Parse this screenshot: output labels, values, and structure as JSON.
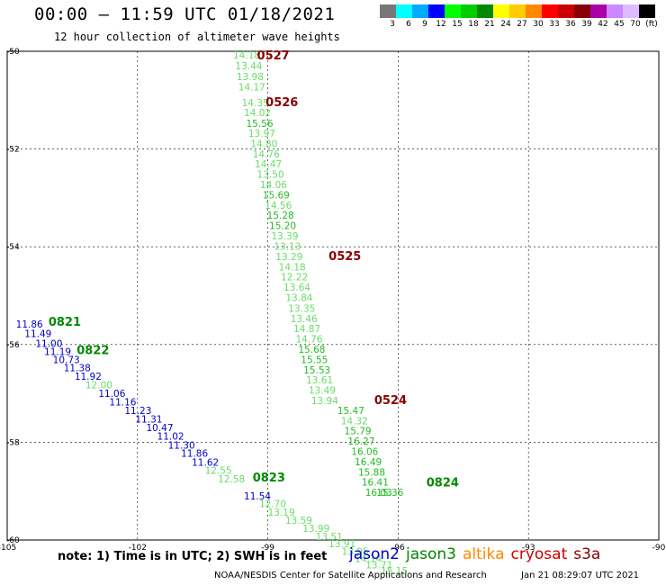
{
  "title": "00:00 – 11:59 UTC 01/18/2021",
  "subtitle": "12 hour collection of altimeter wave heights",
  "color_scale": {
    "colors": [
      "#777777",
      "#00ffff",
      "#00aaff",
      "#0000ff",
      "#00ff00",
      "#00cc00",
      "#008800",
      "#ffff00",
      "#ffcc00",
      "#ff8800",
      "#ff0000",
      "#cc0000",
      "#880000",
      "#aa00aa",
      "#cc88ff",
      "#ddbbff",
      "#000000"
    ],
    "labels": [
      "3",
      "6",
      "9",
      "12",
      "15",
      "18",
      "21",
      "24",
      "27",
      "30",
      "33",
      "36",
      "39",
      "42",
      "45",
      "70",
      "(ft)"
    ]
  },
  "axes": {
    "lon_ticks": [
      "-105",
      "-102",
      "-99",
      "-96",
      "-93",
      "-90"
    ],
    "lat_ticks": [
      "-50",
      "-52",
      "-54",
      "-56",
      "-58",
      "-60"
    ]
  },
  "note": "note: 1) Time is in UTC; 2) SWH is in feet",
  "satellites": [
    {
      "name": "jason2",
      "color": "#0000cc"
    },
    {
      "name": "jason3",
      "color": "#008800"
    },
    {
      "name": "altika",
      "color": "#ff8800"
    },
    {
      "name": "cryosat",
      "color": "#cc0000"
    },
    {
      "name": "s3a",
      "color": "#880000"
    }
  ],
  "footer": "NOAA/NESDIS Center for Satellite Applications and Research",
  "footer_date": "Jan 21 08:29:07 UTC 2021",
  "map_labels": [
    {
      "t": "14.18",
      "lon": -99.8,
      "lat": -50.15,
      "c": "#66dd66"
    },
    {
      "t": "0527",
      "lon": -99.25,
      "lat": -50.17,
      "c": "#880000",
      "b": 1
    },
    {
      "t": "13.44",
      "lon": -99.75,
      "lat": -50.37,
      "c": "#66dd66"
    },
    {
      "t": "13.98",
      "lon": -99.72,
      "lat": -50.59,
      "c": "#66dd66"
    },
    {
      "t": "14.17",
      "lon": -99.68,
      "lat": -50.8,
      "c": "#66dd66"
    },
    {
      "t": "14.35",
      "lon": -99.6,
      "lat": -51.12,
      "c": "#66dd66"
    },
    {
      "t": "0526",
      "lon": -99.05,
      "lat": -51.12,
      "c": "#880000",
      "b": 1
    },
    {
      "t": "14.02",
      "lon": -99.55,
      "lat": -51.33,
      "c": "#66dd66"
    },
    {
      "t": "15.56",
      "lon": -99.5,
      "lat": -51.55,
      "c": "#22bb22"
    },
    {
      "t": "13.97",
      "lon": -99.45,
      "lat": -51.75,
      "c": "#66dd66"
    },
    {
      "t": "14.80",
      "lon": -99.4,
      "lat": -51.96,
      "c": "#66dd66"
    },
    {
      "t": "14.76",
      "lon": -99.35,
      "lat": -52.17,
      "c": "#66dd66"
    },
    {
      "t": "14.47",
      "lon": -99.3,
      "lat": -52.38,
      "c": "#66dd66"
    },
    {
      "t": "13.50",
      "lon": -99.25,
      "lat": -52.59,
      "c": "#66dd66"
    },
    {
      "t": "14.06",
      "lon": -99.18,
      "lat": -52.8,
      "c": "#66dd66"
    },
    {
      "t": "15.69",
      "lon": -99.12,
      "lat": -53.01,
      "c": "#22bb22"
    },
    {
      "t": "14.56",
      "lon": -99.07,
      "lat": -53.22,
      "c": "#66dd66"
    },
    {
      "t": "15.28",
      "lon": -99.02,
      "lat": -53.43,
      "c": "#22bb22"
    },
    {
      "t": "15.20",
      "lon": -98.97,
      "lat": -53.64,
      "c": "#22bb22"
    },
    {
      "t": "13.39",
      "lon": -98.92,
      "lat": -53.85,
      "c": "#66dd66"
    },
    {
      "t": "13.13",
      "lon": -98.86,
      "lat": -54.06,
      "c": "#66dd66"
    },
    {
      "t": "13.29",
      "lon": -98.82,
      "lat": -54.27,
      "c": "#66dd66"
    },
    {
      "t": "0525",
      "lon": -97.6,
      "lat": -54.27,
      "c": "#880000",
      "b": 1
    },
    {
      "t": "14.18",
      "lon": -98.75,
      "lat": -54.48,
      "c": "#66dd66"
    },
    {
      "t": "12.22",
      "lon": -98.7,
      "lat": -54.69,
      "c": "#66dd66"
    },
    {
      "t": "13.64",
      "lon": -98.64,
      "lat": -54.9,
      "c": "#66dd66"
    },
    {
      "t": "13.84",
      "lon": -98.59,
      "lat": -55.11,
      "c": "#66dd66"
    },
    {
      "t": "13.35",
      "lon": -98.53,
      "lat": -55.33,
      "c": "#66dd66"
    },
    {
      "t": "13.46",
      "lon": -98.48,
      "lat": -55.54,
      "c": "#66dd66"
    },
    {
      "t": "14.87",
      "lon": -98.41,
      "lat": -55.75,
      "c": "#66dd66"
    },
    {
      "t": "14.76",
      "lon": -98.36,
      "lat": -55.96,
      "c": "#66dd66"
    },
    {
      "t": "15.68",
      "lon": -98.3,
      "lat": -56.17,
      "c": "#22bb22"
    },
    {
      "t": "15.55",
      "lon": -98.24,
      "lat": -56.38,
      "c": "#22bb22"
    },
    {
      "t": "15.53",
      "lon": -98.18,
      "lat": -56.59,
      "c": "#22bb22"
    },
    {
      "t": "13.61",
      "lon": -98.12,
      "lat": -56.8,
      "c": "#66dd66"
    },
    {
      "t": "13.49",
      "lon": -98.06,
      "lat": -57.01,
      "c": "#66dd66"
    },
    {
      "t": "13.94",
      "lon": -98.0,
      "lat": -57.22,
      "c": "#66dd66"
    },
    {
      "t": "0524",
      "lon": -96.55,
      "lat": -57.22,
      "c": "#880000",
      "b": 1
    },
    {
      "t": "15.47",
      "lon": -97.4,
      "lat": -57.42,
      "c": "#22bb22"
    },
    {
      "t": "14.32",
      "lon": -97.32,
      "lat": -57.63,
      "c": "#66dd66"
    },
    {
      "t": "15.79",
      "lon": -97.24,
      "lat": -57.84,
      "c": "#22bb22"
    },
    {
      "t": "16.27",
      "lon": -97.16,
      "lat": -58.05,
      "c": "#22bb22"
    },
    {
      "t": "16.06",
      "lon": -97.08,
      "lat": -58.26,
      "c": "#22bb22"
    },
    {
      "t": "16.49",
      "lon": -97.0,
      "lat": -58.47,
      "c": "#22bb22"
    },
    {
      "t": "15.88",
      "lon": -96.92,
      "lat": -58.68,
      "c": "#22bb22"
    },
    {
      "t": "16.41",
      "lon": -96.84,
      "lat": -58.89,
      "c": "#22bb22"
    },
    {
      "t": "16.03",
      "lon": -96.76,
      "lat": -59.1,
      "c": "#22bb22"
    },
    {
      "t": "15.36",
      "lon": -96.5,
      "lat": -59.1,
      "c": "#22bb22"
    },
    {
      "t": "0824",
      "lon": -95.35,
      "lat": -58.9,
      "c": "#008800",
      "b": 1
    },
    {
      "t": "11.86",
      "lon": -104.8,
      "lat": -55.65,
      "c": "#0000cc"
    },
    {
      "t": "0821",
      "lon": -104.05,
      "lat": -55.62,
      "c": "#008800",
      "b": 1
    },
    {
      "t": "11.49",
      "lon": -104.6,
      "lat": -55.85,
      "c": "#0000cc"
    },
    {
      "t": "11.00",
      "lon": -104.35,
      "lat": -56.05,
      "c": "#0000cc"
    },
    {
      "t": "11.19",
      "lon": -104.15,
      "lat": -56.22,
      "c": "#0000cc"
    },
    {
      "t": "0822",
      "lon": -103.4,
      "lat": -56.2,
      "c": "#008800",
      "b": 1
    },
    {
      "t": "10.73",
      "lon": -103.95,
      "lat": -56.38,
      "c": "#0000cc"
    },
    {
      "t": "11.38",
      "lon": -103.7,
      "lat": -56.55,
      "c": "#0000cc"
    },
    {
      "t": "11.92",
      "lon": -103.45,
      "lat": -56.72,
      "c": "#0000cc"
    },
    {
      "t": "12.00",
      "lon": -103.2,
      "lat": -56.9,
      "c": "#66dd66"
    },
    {
      "t": "11.06",
      "lon": -102.9,
      "lat": -57.07,
      "c": "#0000cc"
    },
    {
      "t": "11.16",
      "lon": -102.65,
      "lat": -57.25,
      "c": "#0000cc"
    },
    {
      "t": "11.23",
      "lon": -102.3,
      "lat": -57.42,
      "c": "#0000cc"
    },
    {
      "t": "11.31",
      "lon": -102.05,
      "lat": -57.6,
      "c": "#0000cc"
    },
    {
      "t": "10.47",
      "lon": -101.8,
      "lat": -57.77,
      "c": "#0000cc"
    },
    {
      "t": "11.02",
      "lon": -101.55,
      "lat": -57.95,
      "c": "#0000cc"
    },
    {
      "t": "11.30",
      "lon": -101.3,
      "lat": -58.13,
      "c": "#0000cc"
    },
    {
      "t": "11.86",
      "lon": -101.0,
      "lat": -58.3,
      "c": "#0000cc"
    },
    {
      "t": "11.62",
      "lon": -100.75,
      "lat": -58.48,
      "c": "#0000cc"
    },
    {
      "t": "12.55",
      "lon": -100.45,
      "lat": -58.65,
      "c": "#66dd66"
    },
    {
      "t": "12.58",
      "lon": -100.15,
      "lat": -58.82,
      "c": "#66dd66"
    },
    {
      "t": "0823",
      "lon": -99.35,
      "lat": -58.8,
      "c": "#008800",
      "b": 1
    },
    {
      "t": "11.54",
      "lon": -99.55,
      "lat": -59.17,
      "c": "#0000cc"
    },
    {
      "t": "12.70",
      "lon": -99.2,
      "lat": -59.33,
      "c": "#66dd66"
    },
    {
      "t": "13.19",
      "lon": -99.0,
      "lat": -59.5,
      "c": "#66dd66"
    },
    {
      "t": "13.59",
      "lon": -98.6,
      "lat": -59.67,
      "c": "#66dd66"
    },
    {
      "t": "13.99",
      "lon": -98.2,
      "lat": -59.83,
      "c": "#66dd66"
    },
    {
      "t": "13.51",
      "lon": -97.9,
      "lat": -60.0,
      "c": "#66dd66"
    },
    {
      "t": "13.91",
      "lon": -97.6,
      "lat": -60.15,
      "c": "#66dd66"
    },
    {
      "t": "13.95",
      "lon": -97.3,
      "lat": -60.3,
      "c": "#66dd66"
    },
    {
      "t": "14.14",
      "lon": -97.0,
      "lat": -60.45,
      "c": "#66dd66"
    },
    {
      "t": "13.71",
      "lon": -96.75,
      "lat": -60.58,
      "c": "#66dd66"
    },
    {
      "t": "15.15",
      "lon": -96.4,
      "lat": -60.7,
      "c": "#66dd66"
    }
  ]
}
